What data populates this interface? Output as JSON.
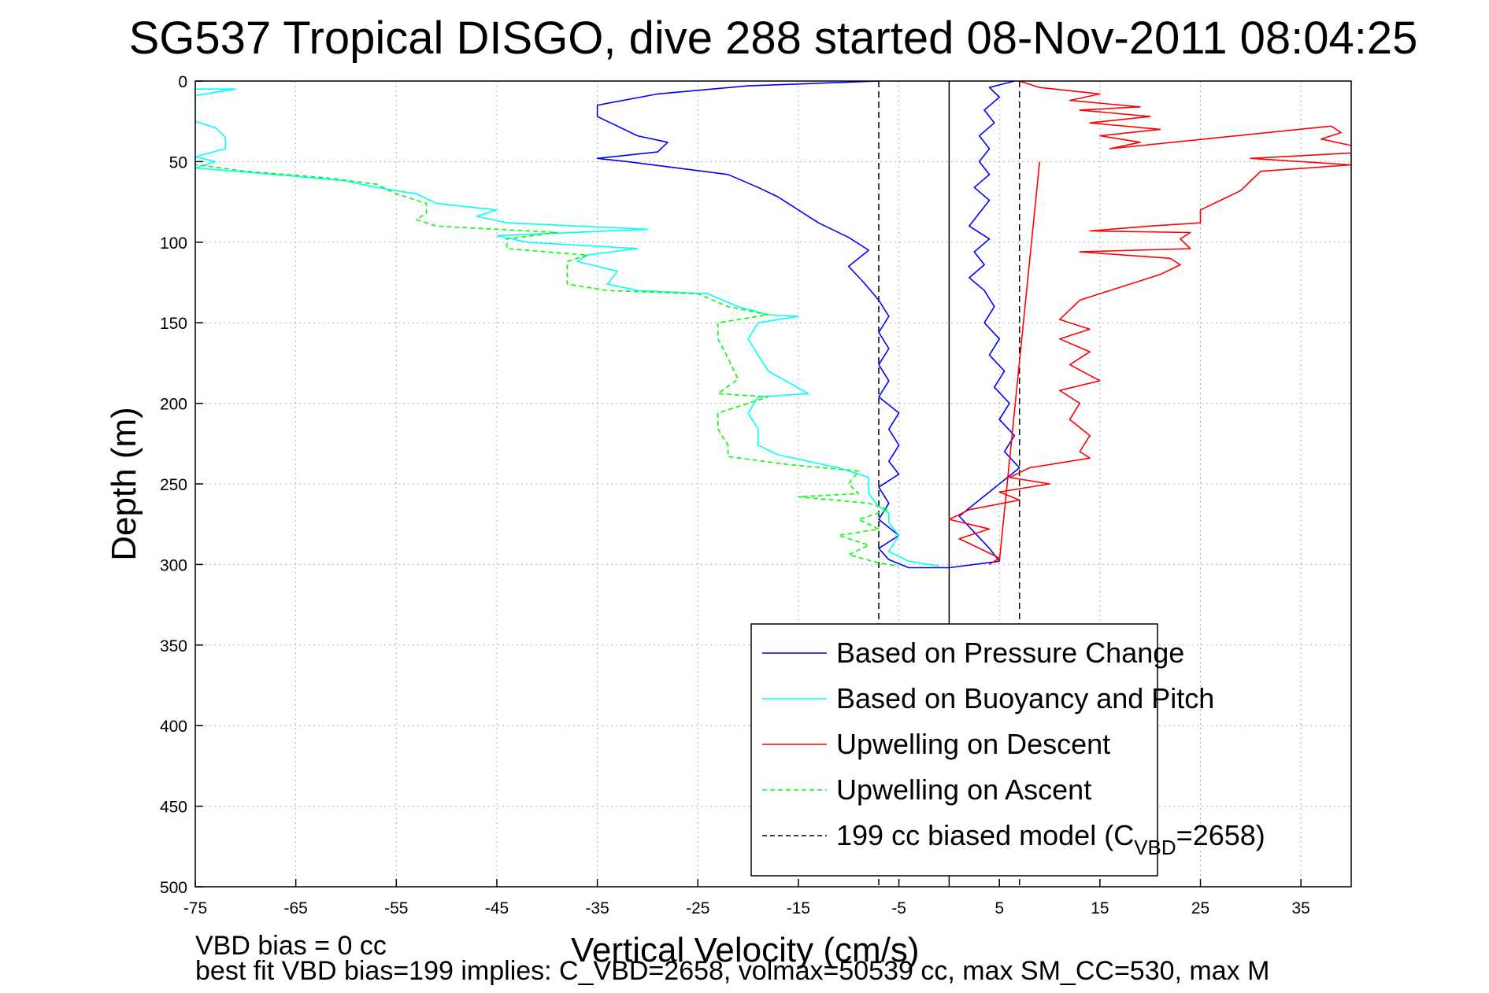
{
  "chart_data": {
    "type": "line",
    "title": "SG537 Tropical DISGO, dive 288 started 08-Nov-2011 08:04:25",
    "xlabel": "Vertical Velocity (cm/s)",
    "ylabel": "Depth (m)",
    "xlim": [
      -75,
      40
    ],
    "ylim": [
      0,
      500
    ],
    "y_reversed": true,
    "grid": true,
    "x_ticks": [
      -75,
      -65,
      -55,
      -45,
      -35,
      -25,
      -15,
      -5,
      5,
      15,
      25,
      35
    ],
    "y_ticks": [
      0,
      50,
      100,
      150,
      200,
      250,
      300,
      350,
      400,
      450,
      500
    ],
    "legend_position": "bottom-right",
    "legend": [
      {
        "label": "Based on Pressure Change",
        "color": "#0000ff",
        "dash": "solid"
      },
      {
        "label": "Based on Buoyancy and Pitch",
        "color": "#00ffff",
        "dash": "solid"
      },
      {
        "label": "Upwelling on Descent",
        "color": "#ff0000",
        "dash": "solid"
      },
      {
        "label": "Upwelling on Ascent",
        "color": "#00ff00",
        "dash": "dashed"
      },
      {
        "label": "199 cc biased model (C",
        "label_sub": "VBD",
        "label_tail": "=2658)",
        "color": "#000000",
        "dash": "dashed"
      }
    ],
    "series": [
      {
        "name": "Based on Pressure Change",
        "color": "#0000ff",
        "points": [
          [
            6.5,
            0
          ],
          [
            4,
            4
          ],
          [
            5,
            10
          ],
          [
            3.5,
            18
          ],
          [
            4.5,
            26
          ],
          [
            3,
            34
          ],
          [
            4,
            42
          ],
          [
            3,
            50
          ],
          [
            4,
            58
          ],
          [
            2.5,
            66
          ],
          [
            4,
            74
          ],
          [
            3,
            82
          ],
          [
            2,
            90
          ],
          [
            4,
            98
          ],
          [
            2.5,
            106
          ],
          [
            3.5,
            114
          ],
          [
            2,
            122
          ],
          [
            3.5,
            130
          ],
          [
            4.5,
            140
          ],
          [
            3.5,
            150
          ],
          [
            5,
            160
          ],
          [
            4,
            170
          ],
          [
            5.5,
            180
          ],
          [
            4.5,
            190
          ],
          [
            6,
            200
          ],
          [
            5,
            210
          ],
          [
            6.5,
            220
          ],
          [
            5.5,
            230
          ],
          [
            7,
            240
          ],
          [
            5,
            250
          ],
          [
            3,
            260
          ],
          [
            1,
            270
          ],
          [
            2.5,
            280
          ],
          [
            4,
            290
          ],
          [
            5,
            298
          ],
          [
            0,
            302
          ],
          [
            -4,
            302
          ],
          [
            -6,
            297
          ],
          [
            -7,
            290
          ],
          [
            -5,
            282
          ],
          [
            -7,
            272
          ],
          [
            -6,
            262
          ],
          [
            -7,
            252
          ],
          [
            -5,
            244
          ],
          [
            -6,
            236
          ],
          [
            -5,
            226
          ],
          [
            -6,
            216
          ],
          [
            -5,
            206
          ],
          [
            -7,
            196
          ],
          [
            -6,
            186
          ],
          [
            -7,
            176
          ],
          [
            -6,
            166
          ],
          [
            -7,
            156
          ],
          [
            -6,
            146
          ],
          [
            -7,
            136
          ],
          [
            -8.5,
            125
          ],
          [
            -10,
            115
          ],
          [
            -8,
            105
          ],
          [
            -10,
            97
          ],
          [
            -13,
            88
          ],
          [
            -15,
            80
          ],
          [
            -17,
            72
          ],
          [
            -19,
            66
          ],
          [
            -22,
            58
          ],
          [
            -27,
            54
          ],
          [
            -32,
            50
          ],
          [
            -35,
            48
          ],
          [
            -29,
            44
          ],
          [
            -28,
            38
          ],
          [
            -31,
            34
          ],
          [
            -33,
            28
          ],
          [
            -35,
            22
          ],
          [
            -35,
            15
          ],
          [
            -29,
            8
          ],
          [
            -20,
            3
          ],
          [
            -7,
            0
          ]
        ]
      },
      {
        "name": "Based on Buoyancy and Pitch",
        "color": "#00ffff",
        "points": [
          [
            -75,
            5
          ],
          [
            -71,
            5
          ],
          [
            -75,
            9
          ],
          [
            -75,
            25
          ],
          [
            -73,
            29
          ],
          [
            -72,
            35
          ],
          [
            -72,
            42
          ],
          [
            -75,
            47
          ],
          [
            -73,
            50
          ],
          [
            -75,
            54
          ],
          [
            -67,
            58
          ],
          [
            -60,
            62
          ],
          [
            -57,
            66
          ],
          [
            -53,
            70
          ],
          [
            -51,
            76
          ],
          [
            -48,
            78
          ],
          [
            -45,
            80
          ],
          [
            -47,
            84
          ],
          [
            -44,
            88
          ],
          [
            -30,
            92
          ],
          [
            -45,
            96
          ],
          [
            -42,
            100
          ],
          [
            -31,
            104
          ],
          [
            -36,
            108
          ],
          [
            -37,
            112
          ],
          [
            -33,
            118
          ],
          [
            -34,
            126
          ],
          [
            -31,
            130
          ],
          [
            -24,
            132
          ],
          [
            -21,
            140
          ],
          [
            -18,
            145
          ],
          [
            -15,
            146
          ],
          [
            -19,
            150
          ],
          [
            -20,
            160
          ],
          [
            -19,
            170
          ],
          [
            -18,
            180
          ],
          [
            -14,
            194
          ],
          [
            -19,
            196
          ],
          [
            -20,
            206
          ],
          [
            -19,
            216
          ],
          [
            -19,
            226
          ],
          [
            -17,
            232
          ],
          [
            -11,
            240
          ],
          [
            -8,
            246
          ],
          [
            -8,
            256
          ],
          [
            -7,
            264
          ],
          [
            -6,
            268
          ],
          [
            -6,
            274
          ],
          [
            -5,
            282
          ],
          [
            -6,
            292
          ],
          [
            -4,
            298
          ],
          [
            -1,
            301
          ]
        ]
      },
      {
        "name": "Upwelling on Descent",
        "color": "#ff0000",
        "points": [
          [
            7,
            0
          ],
          [
            9,
            4
          ],
          [
            15,
            8
          ],
          [
            12,
            12
          ],
          [
            19,
            16
          ],
          [
            13,
            18
          ],
          [
            20,
            22
          ],
          [
            14,
            26
          ],
          [
            21,
            30
          ],
          [
            15,
            34
          ],
          [
            19,
            38
          ],
          [
            16,
            42
          ],
          [
            38,
            28
          ],
          [
            39,
            32
          ],
          [
            37,
            36
          ],
          [
            40,
            40
          ],
          [
            42,
            44
          ],
          [
            30,
            48
          ],
          [
            40,
            52
          ],
          [
            31,
            56
          ],
          [
            30,
            62
          ],
          [
            29,
            68
          ],
          [
            27,
            74
          ],
          [
            25,
            80
          ],
          [
            25,
            88
          ],
          [
            20,
            90
          ],
          [
            14,
            93
          ],
          [
            24,
            94
          ],
          [
            23,
            98
          ],
          [
            24,
            104
          ],
          [
            13,
            106
          ],
          [
            22,
            110
          ],
          [
            23,
            114
          ],
          [
            21,
            120
          ],
          [
            19,
            124
          ],
          [
            17,
            128
          ],
          [
            15,
            132
          ],
          [
            13,
            136
          ],
          [
            12,
            142
          ],
          [
            11,
            148
          ],
          [
            14,
            154
          ],
          [
            11,
            160
          ],
          [
            14,
            168
          ],
          [
            12,
            176
          ],
          [
            15,
            186
          ],
          [
            11,
            192
          ],
          [
            13,
            200
          ],
          [
            12,
            210
          ],
          [
            14,
            220
          ],
          [
            13,
            230
          ],
          [
            14,
            234
          ],
          [
            8,
            240
          ],
          [
            6,
            246
          ],
          [
            10,
            250
          ],
          [
            5,
            255
          ],
          [
            7,
            260
          ],
          [
            2,
            266
          ],
          [
            0,
            272
          ],
          [
            4,
            278
          ],
          [
            1,
            284
          ],
          [
            3,
            290
          ],
          [
            5,
            296
          ],
          [
            4,
            300
          ]
        ]
      },
      {
        "name": "Model line",
        "color": "#ff0000",
        "points": [
          [
            9,
            50
          ],
          [
            5,
            298
          ]
        ]
      },
      {
        "name": "Upwelling on Ascent",
        "color": "#00ff00",
        "dashed": true,
        "points": [
          [
            -76,
            51
          ],
          [
            -70,
            56
          ],
          [
            -62,
            60
          ],
          [
            -57,
            64
          ],
          [
            -55,
            70
          ],
          [
            -52,
            76
          ],
          [
            -52,
            82
          ],
          [
            -53,
            86
          ],
          [
            -51,
            90
          ],
          [
            -39,
            94
          ],
          [
            -44,
            98
          ],
          [
            -44,
            104
          ],
          [
            -36,
            108
          ],
          [
            -38,
            112
          ],
          [
            -38,
            118
          ],
          [
            -38,
            126
          ],
          [
            -34,
            130
          ],
          [
            -25,
            132
          ],
          [
            -22,
            140
          ],
          [
            -18,
            145
          ],
          [
            -23,
            150
          ],
          [
            -23,
            160
          ],
          [
            -22,
            172
          ],
          [
            -21,
            185
          ],
          [
            -23,
            194
          ],
          [
            -18,
            196
          ],
          [
            -23,
            206
          ],
          [
            -23,
            216
          ],
          [
            -22,
            226
          ],
          [
            -22,
            233
          ],
          [
            -16,
            238
          ],
          [
            -9,
            242
          ],
          [
            -10,
            250
          ],
          [
            -9,
            256
          ],
          [
            -15,
            258
          ],
          [
            -8,
            262
          ],
          [
            -6,
            266
          ],
          [
            -9,
            272
          ],
          [
            -7,
            278
          ],
          [
            -11,
            282
          ],
          [
            -8,
            288
          ],
          [
            -10,
            294
          ],
          [
            -7,
            299
          ],
          [
            -5,
            301
          ]
        ]
      }
    ],
    "model_lines": [
      {
        "x": -7,
        "style": "dashed"
      },
      {
        "x": 0,
        "style": "solid"
      },
      {
        "x": 7,
        "style": "dashed"
      }
    ]
  },
  "footer": {
    "line1": "VBD bias = 0 cc",
    "line2": "best fit VBD bias=199 implies: C_VBD=2658, volmax=50539 cc, max SM_CC=530, max M"
  }
}
